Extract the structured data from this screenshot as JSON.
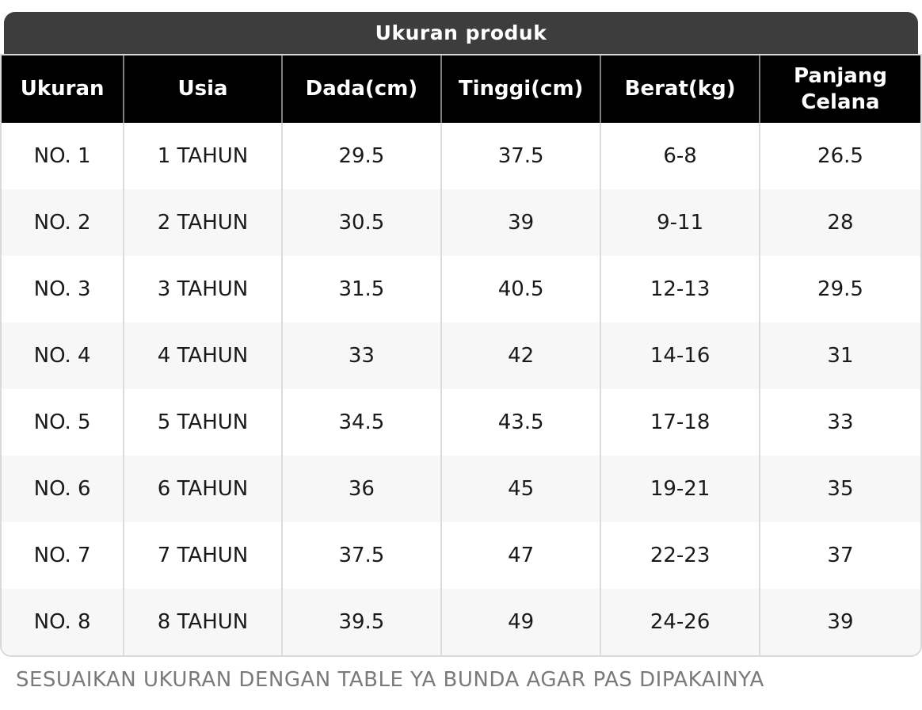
{
  "table": {
    "title": "Ukuran produk",
    "columns": [
      "Ukuran",
      "Usia",
      "Dada(cm)",
      "Tinggi(cm)",
      "Berat(kg)",
      "Panjang Celana"
    ],
    "rows": [
      [
        "NO. 1",
        "1 TAHUN",
        "29.5",
        "37.5",
        "6-8",
        "26.5"
      ],
      [
        "NO. 2",
        "2 TAHUN",
        "30.5",
        "39",
        "9-11",
        "28"
      ],
      [
        "NO. 3",
        "3 TAHUN",
        "31.5",
        "40.5",
        "12-13",
        "29.5"
      ],
      [
        "NO. 4",
        "4 TAHUN",
        "33",
        "42",
        "14-16",
        "31"
      ],
      [
        "NO. 5",
        "5 TAHUN",
        "34.5",
        "43.5",
        "17-18",
        "33"
      ],
      [
        "NO. 6",
        "6 TAHUN",
        "36",
        "45",
        "19-21",
        "35"
      ],
      [
        "NO. 7",
        "7 TAHUN",
        "37.5",
        "47",
        "22-23",
        "37"
      ],
      [
        "NO. 8",
        "8 TAHUN",
        "39.5",
        "49",
        "24-26",
        "39"
      ]
    ]
  },
  "footer": {
    "note": "SESUAIKAN UKURAN DENGAN TABLE YA BUNDA AGAR PAS DIPAKAINYA"
  },
  "colors": {
    "title_bar_bg": "#3d3d3d",
    "header_bg": "#000000",
    "header_divider": "#7d7d7d",
    "row_alt_bg": "#f7f7f7",
    "row_divider": "#dcdcdc",
    "border_color": "#d9d9d9",
    "cell_text": "#1a1a1a",
    "footer_text": "#7a7a7a"
  },
  "chart_data": {
    "type": "table",
    "title": "Ukuran produk",
    "columns": [
      "Ukuran",
      "Usia",
      "Dada(cm)",
      "Tinggi(cm)",
      "Berat(kg)",
      "Panjang Celana"
    ],
    "rows": [
      [
        "NO. 1",
        "1 TAHUN",
        "29.5",
        "37.5",
        "6-8",
        "26.5"
      ],
      [
        "NO. 2",
        "2 TAHUN",
        "30.5",
        "39",
        "9-11",
        "28"
      ],
      [
        "NO. 3",
        "3 TAHUN",
        "31.5",
        "40.5",
        "12-13",
        "29.5"
      ],
      [
        "NO. 4",
        "4 TAHUN",
        "33",
        "42",
        "14-16",
        "31"
      ],
      [
        "NO. 5",
        "5 TAHUN",
        "34.5",
        "43.5",
        "17-18",
        "33"
      ],
      [
        "NO. 6",
        "6 TAHUN",
        "36",
        "45",
        "19-21",
        "35"
      ],
      [
        "NO. 7",
        "7 TAHUN",
        "37.5",
        "47",
        "22-23",
        "37"
      ],
      [
        "NO. 8",
        "8 TAHUN",
        "39.5",
        "49",
        "24-26",
        "39"
      ]
    ],
    "notes": "SESUAIKAN UKURAN DENGAN TABLE YA BUNDA AGAR PAS DIPAKAINYA"
  }
}
